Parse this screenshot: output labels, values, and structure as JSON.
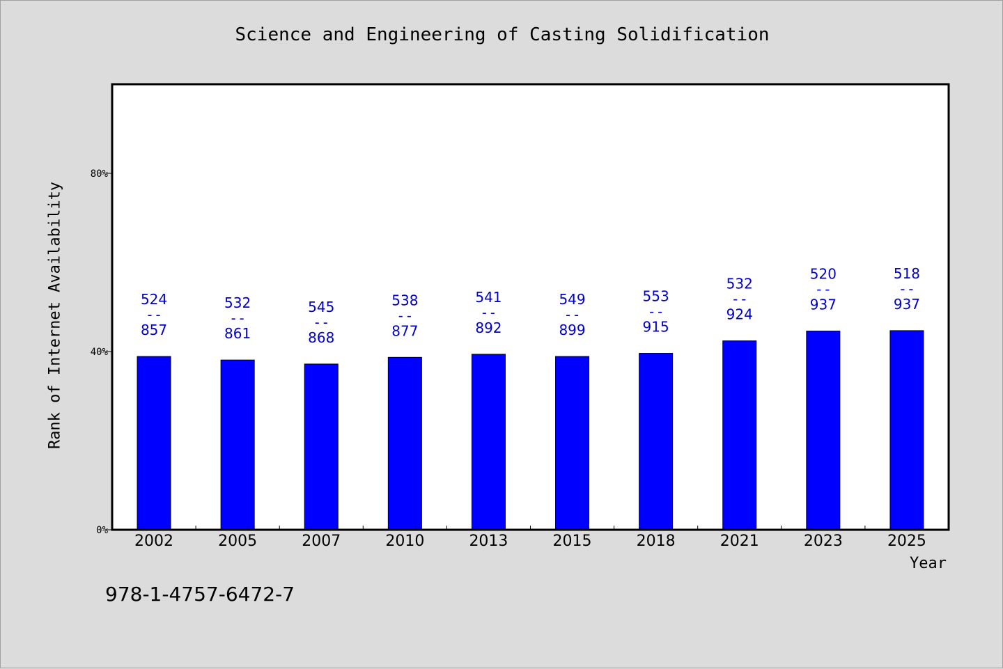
{
  "chart_data": {
    "type": "bar",
    "title": "Science and Engineering of Casting Solidification",
    "xlabel": "Year",
    "ylabel": "Rank of Internet Availability",
    "ylim": [
      0,
      100
    ],
    "yticks": [
      {
        "value": 0,
        "label": "0%"
      },
      {
        "value": 40,
        "label": "40%"
      },
      {
        "value": 80,
        "label": "80%"
      }
    ],
    "categories": [
      "2002",
      "2005",
      "2007",
      "2010",
      "2013",
      "2015",
      "2018",
      "2021",
      "2023",
      "2025"
    ],
    "values": [
      38.9,
      38.1,
      37.2,
      38.7,
      39.4,
      38.9,
      39.6,
      42.4,
      44.6,
      44.7
    ],
    "labels": [
      {
        "top": "524",
        "sep": "--",
        "bottom": "857"
      },
      {
        "top": "532",
        "sep": "--",
        "bottom": "861"
      },
      {
        "top": "545",
        "sep": "--",
        "bottom": "868"
      },
      {
        "top": "538",
        "sep": "--",
        "bottom": "877"
      },
      {
        "top": "541",
        "sep": "--",
        "bottom": "892"
      },
      {
        "top": "549",
        "sep": "--",
        "bottom": "899"
      },
      {
        "top": "553",
        "sep": "--",
        "bottom": "915"
      },
      {
        "top": "532",
        "sep": "--",
        "bottom": "924"
      },
      {
        "top": "520",
        "sep": "--",
        "bottom": "937"
      },
      {
        "top": "518",
        "sep": "--",
        "bottom": "937"
      }
    ],
    "grid": false,
    "legend": "none",
    "bar_color": "#0000ff",
    "label_color": "#0000cc"
  },
  "footer": {
    "isbn": "978-1-4757-6472-7"
  }
}
